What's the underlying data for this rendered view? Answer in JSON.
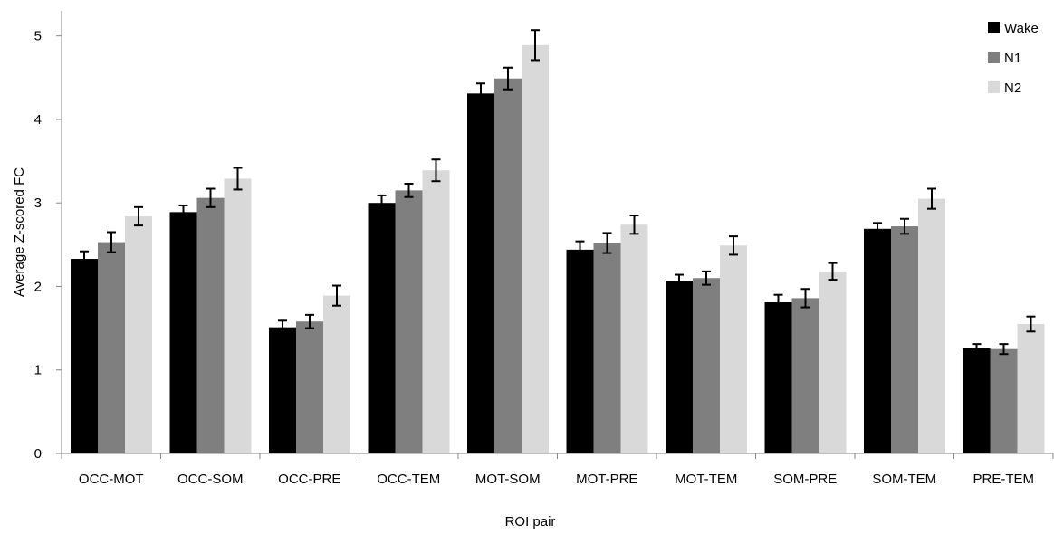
{
  "chart_data": {
    "type": "bar",
    "xlabel": "ROI pair",
    "ylabel": "Average Z-scored FC",
    "ylim": [
      0,
      5.3
    ],
    "yticks": [
      0,
      1,
      2,
      3,
      4,
      5
    ],
    "grid": false,
    "legend_position": "top-right",
    "categories": [
      "OCC-MOT",
      "OCC-SOM",
      "OCC-PRE",
      "OCC-TEM",
      "MOT-SOM",
      "MOT-PRE",
      "MOT-TEM",
      "SOM-PRE",
      "SOM-TEM",
      "PRE-TEM"
    ],
    "series": [
      {
        "name": "Wake",
        "color": "#000000",
        "values": [
          2.33,
          2.89,
          1.51,
          3.0,
          4.31,
          2.44,
          2.07,
          1.81,
          2.69,
          1.26
        ],
        "errors": [
          0.09,
          0.08,
          0.08,
          0.09,
          0.12,
          0.1,
          0.07,
          0.09,
          0.07,
          0.05
        ]
      },
      {
        "name": "N1",
        "color": "#7f7f7f",
        "values": [
          2.53,
          3.06,
          1.58,
          3.15,
          4.49,
          2.52,
          2.1,
          1.86,
          2.72,
          1.25
        ],
        "errors": [
          0.12,
          0.11,
          0.08,
          0.08,
          0.13,
          0.12,
          0.08,
          0.11,
          0.09,
          0.06
        ]
      },
      {
        "name": "N2",
        "color": "#d9d9d9",
        "values": [
          2.84,
          3.29,
          1.89,
          3.39,
          4.89,
          2.74,
          2.49,
          2.18,
          3.05,
          1.55
        ],
        "errors": [
          0.11,
          0.13,
          0.12,
          0.13,
          0.18,
          0.11,
          0.11,
          0.1,
          0.12,
          0.09
        ]
      }
    ]
  }
}
